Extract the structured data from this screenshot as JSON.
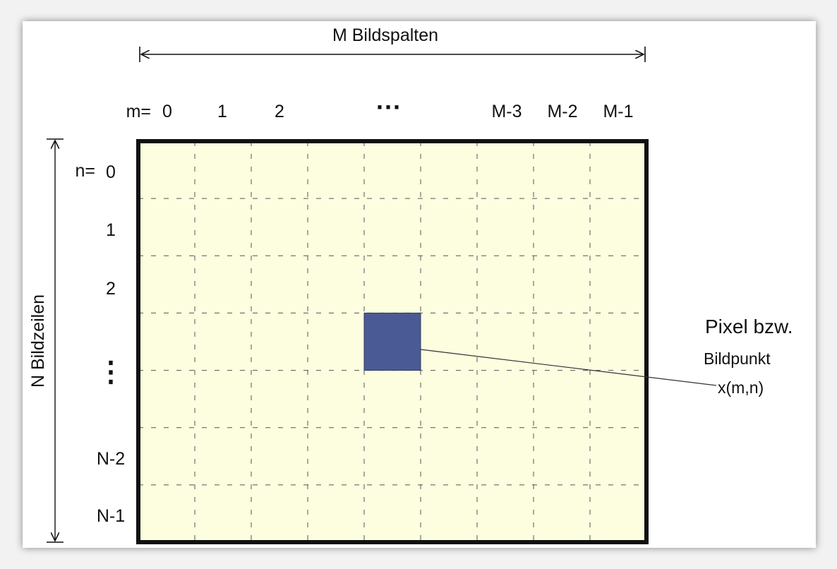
{
  "colors": {
    "page_bg": "#f2f2f2",
    "card_bg": "#ffffff",
    "grid_fill": "#fdfde0",
    "grid_border": "#111111",
    "grid_lines": "#555555",
    "pixel_fill": "#4a5a94",
    "text": "#111111"
  },
  "diagram": {
    "columns_title": "M Bildspalten",
    "rows_title": "N Bildzeilen",
    "m_prefix": "m=",
    "n_prefix": "n=",
    "column_labels": [
      "0",
      "1",
      "2",
      "···",
      "M-3",
      "M-2",
      "M-1"
    ],
    "row_labels": [
      "0",
      "1",
      "2",
      "⋮",
      "N-2",
      "N-1"
    ],
    "pixel_label_line1": "Pixel bzw.",
    "pixel_label_line2": "Bildpunkt",
    "pixel_label_line3": "x(m,n)",
    "grid_cols": 9,
    "grid_rows": 7,
    "highlighted_cell": {
      "col": 4,
      "row": 3
    }
  }
}
